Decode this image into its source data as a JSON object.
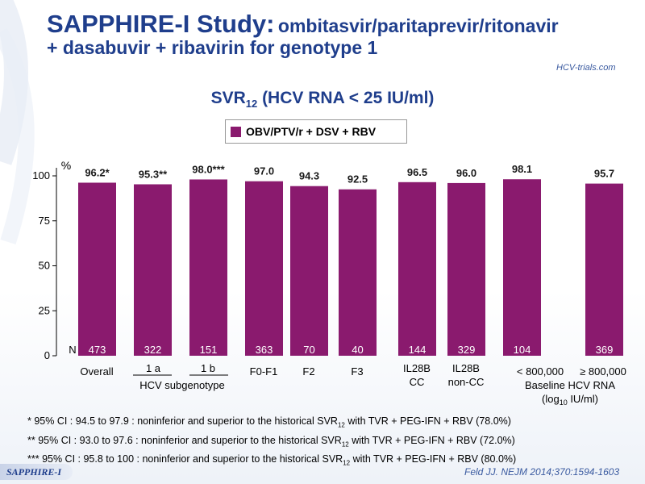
{
  "header": {
    "title_big": "SAPPHIRE-I Study:",
    "title_rest": "ombitasvir/paritaprevir/ritonavir",
    "title_line2": "+ dasabuvir + ribavirin for genotype 1",
    "logo": "HCV-trials.com"
  },
  "subtitle": {
    "main": "SVR",
    "sub": "12",
    "rest": " (HCV RNA < 25 IU/ml)"
  },
  "legend": {
    "label": "OBV/PTV/r + DSV + RBV",
    "color": "#8a1a6e"
  },
  "chart_data": {
    "type": "bar",
    "ylabel": "%",
    "ylim": [
      0,
      100
    ],
    "yticks": [
      "100",
      "75",
      "50",
      "25",
      "0"
    ],
    "n_label": "N",
    "bar_color": "#8a1a6e",
    "bars": [
      {
        "value": 96.2,
        "label": "96.2*",
        "n": "473",
        "cat": "Overall"
      },
      {
        "value": 95.3,
        "label": "95.3**",
        "n": "322",
        "cat": "1 a"
      },
      {
        "value": 98.0,
        "label": "98.0***",
        "n": "151",
        "cat": "1 b"
      },
      {
        "value": 97.0,
        "label": "97.0",
        "n": "363",
        "cat": "F0-F1"
      },
      {
        "value": 94.3,
        "label": "94.3",
        "n": "70",
        "cat": "F2"
      },
      {
        "value": 92.5,
        "label": "92.5",
        "n": "40",
        "cat": "F3"
      },
      {
        "value": 96.5,
        "label": "96.5",
        "n": "144",
        "cat": "IL28B CC"
      },
      {
        "value": 96.0,
        "label": "96.0",
        "n": "329",
        "cat": "IL28B non-CC"
      },
      {
        "value": 98.1,
        "label": "98.1",
        "n": "104",
        "cat": "< 800,000"
      },
      {
        "value": 95.7,
        "label": "95.7",
        "n": "369",
        "cat": "≥ 800,000"
      }
    ],
    "group_labels": {
      "subgenotype": "HCV subgenotype",
      "baseline_line1": "Baseline HCV RNA",
      "baseline_line2_pre": "(log",
      "baseline_line2_sub": "10",
      "baseline_line2_post": " IU/ml)"
    }
  },
  "footnotes": [
    {
      "pre": "* 95% CI : 94.5 to 97.9 :  noninferior and superior to the historical SVR",
      "sub": "12",
      "post": " with TVR + PEG-IFN + RBV (78.0%)"
    },
    {
      "pre": "** 95% CI : 93.0 to 97.6 :  noninferior and superior to the historical SVR",
      "sub": "12",
      "post": " with TVR + PEG-IFN + RBV (72.0%)"
    },
    {
      "pre": "*** 95% CI : 95.8 to 100 :  noninferior and superior to the historical SVR",
      "sub": "12",
      "post": " with TVR + PEG-IFN + RBV (80.0%)"
    }
  ],
  "badge": "SAPPHIRE-I",
  "citation": "Feld JJ. NEJM 2014;370:1594-1603"
}
